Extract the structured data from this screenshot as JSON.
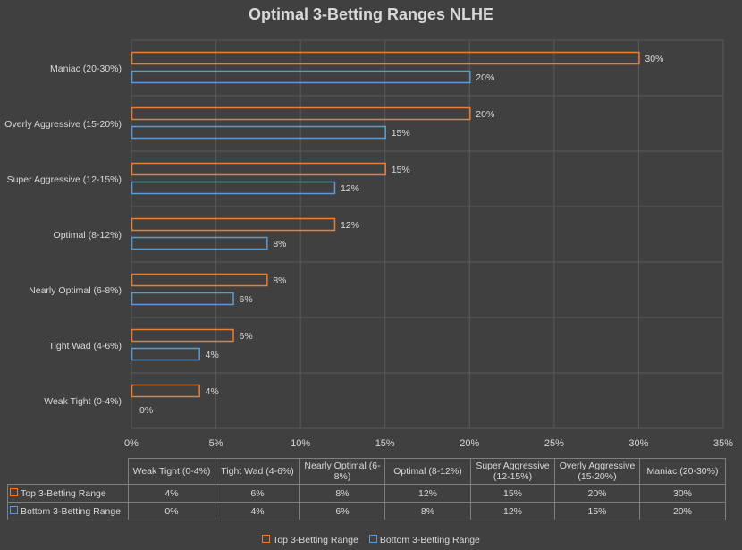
{
  "chart_data": {
    "type": "bar",
    "orientation": "horizontal",
    "title": "Optimal 3-Betting Ranges NLHE",
    "categories": [
      "Weak Tight (0-4%)",
      "Tight Wad (4-6%)",
      "Nearly Optimal (6-8%)",
      "Optimal (8-12%)",
      "Super Aggressive (12-15%)",
      "Overly Aggressive (15-20%)",
      "Maniac (20-30%)"
    ],
    "table_headers": [
      "Weak Tight (0-4%)",
      "Tight Wad (4-6%)",
      "Nearly Optimal (6-8%)",
      "Optimal (8-12%)",
      "Super Aggressive (12-15%)",
      "Overly Aggressive (15-20%)",
      "Maniac (20-30%)"
    ],
    "series": [
      {
        "name": "Top 3-Betting Range",
        "values": [
          4,
          6,
          8,
          12,
          15,
          20,
          30
        ],
        "labels": [
          "4%",
          "6%",
          "8%",
          "12%",
          "15%",
          "20%",
          "30%"
        ],
        "color": "#ed7d31"
      },
      {
        "name": "Bottom 3-Betting Range",
        "values": [
          0,
          4,
          6,
          8,
          12,
          15,
          20
        ],
        "labels": [
          "0%",
          "4%",
          "6%",
          "8%",
          "12%",
          "15%",
          "20%"
        ],
        "color": "#5b9bd5"
      }
    ],
    "xlim": [
      0,
      35
    ],
    "xticks": [
      0,
      5,
      10,
      15,
      20,
      25,
      30,
      35
    ],
    "xtick_labels": [
      "0%",
      "5%",
      "10%",
      "15%",
      "20%",
      "25%",
      "30%",
      "35%"
    ],
    "grid": true,
    "legend_position": "bottom",
    "data_table": true
  }
}
